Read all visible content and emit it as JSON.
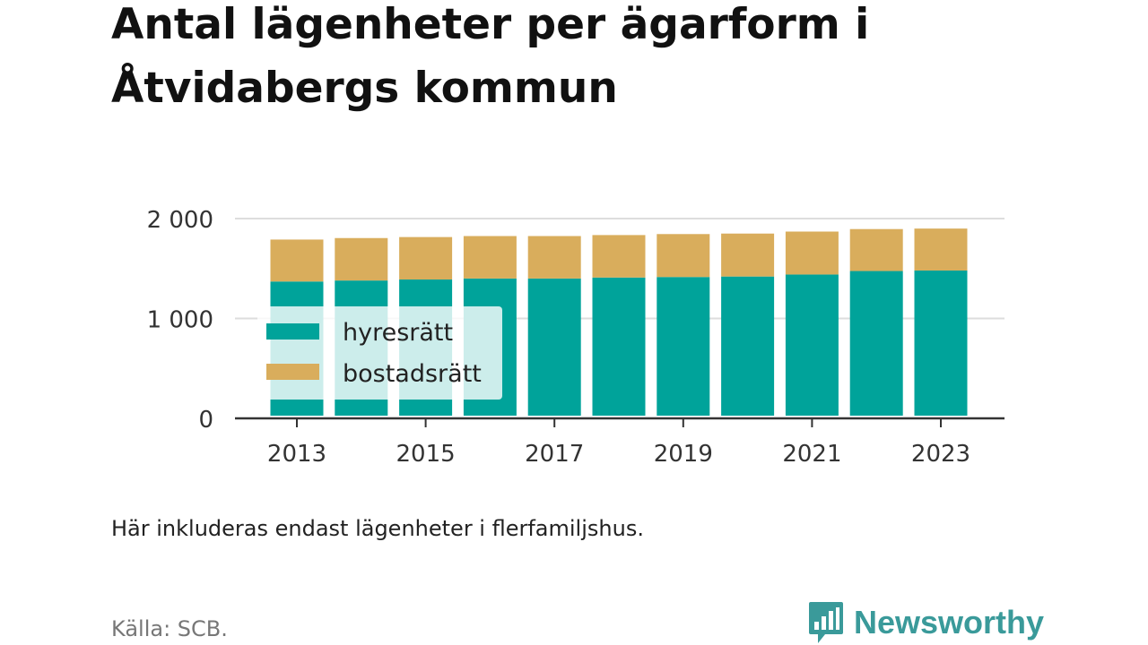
{
  "title": "Antal lägenheter per ägarform i Åtvidabergs kommun",
  "subtitle": "Här inkluderas endast lägenheter i flerfamiljshus.",
  "source": "Källa: SCB.",
  "brand": {
    "name": "Newsworthy",
    "color": "#3a9a9a"
  },
  "chart_data": {
    "type": "bar",
    "stacked": true,
    "x": [
      2013,
      2014,
      2015,
      2016,
      2017,
      2018,
      2019,
      2020,
      2021,
      2022,
      2023
    ],
    "x_tick_labels": [
      "2013",
      "2015",
      "2017",
      "2019",
      "2021",
      "2023"
    ],
    "y_tick_values": [
      0,
      1000,
      2000
    ],
    "y_tick_labels": [
      "0",
      "1 000",
      "2 000"
    ],
    "ylim": [
      0,
      2000
    ],
    "grid": true,
    "legend_position": "inside-left",
    "series": [
      {
        "name": "hyresrätt",
        "color": "#00a39a",
        "values": [
          1370,
          1380,
          1390,
          1400,
          1400,
          1410,
          1415,
          1420,
          1440,
          1475,
          1480
        ]
      },
      {
        "name": "bostadsrätt",
        "color": "#d9ad5c",
        "values": [
          420,
          425,
          425,
          425,
          425,
          425,
          430,
          430,
          430,
          420,
          420
        ]
      }
    ]
  }
}
